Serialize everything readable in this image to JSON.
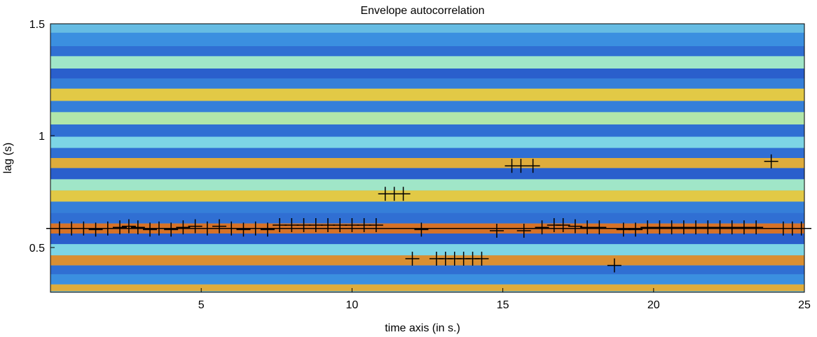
{
  "chart_data": {
    "type": "heatmap",
    "title": "Envelope autocorrelation",
    "xlabel": "time axis (in s.)",
    "ylabel": "lag (s)",
    "xlim": [
      0,
      25
    ],
    "ylim": [
      0.3,
      1.5
    ],
    "x_ticks": [
      5,
      10,
      15,
      20,
      25
    ],
    "y_ticks": [
      0.5,
      1,
      1.5
    ],
    "x_tick_labels": [
      "5",
      "10",
      "15",
      "20",
      "25"
    ],
    "y_tick_labels": [
      "0.5",
      "1",
      "1.5"
    ],
    "colormap": "jet",
    "colors": {
      "low": "#1f3fbf",
      "mid_low": "#3b8fe0",
      "mid": "#8ee6e6",
      "mid_high": "#e6e650",
      "high": "#d2551e"
    },
    "bands": [
      {
        "lag": 1.42,
        "level": 0.25
      },
      {
        "lag": 1.38,
        "level": 0.15
      },
      {
        "lag": 1.33,
        "level": 0.55
      },
      {
        "lag": 1.27,
        "level": 0.1
      },
      {
        "lag": 1.24,
        "level": 0.2
      },
      {
        "lag": 1.18,
        "level": 0.8
      },
      {
        "lag": 1.13,
        "level": 0.2
      },
      {
        "lag": 1.08,
        "level": 0.6
      },
      {
        "lag": 1.02,
        "level": 0.15
      },
      {
        "lag": 0.97,
        "level": 0.45
      },
      {
        "lag": 0.92,
        "level": 0.15
      },
      {
        "lag": 0.88,
        "level": 0.85
      },
      {
        "lag": 0.83,
        "level": 0.1
      },
      {
        "lag": 0.78,
        "level": 0.55
      },
      {
        "lag": 0.73,
        "level": 0.8
      },
      {
        "lag": 0.68,
        "level": 0.2
      },
      {
        "lag": 0.63,
        "level": 0.15
      },
      {
        "lag": 0.585,
        "level": 0.95
      },
      {
        "lag": 0.54,
        "level": 0.1
      },
      {
        "lag": 0.49,
        "level": 0.45
      },
      {
        "lag": 0.44,
        "level": 0.9
      },
      {
        "lag": 0.4,
        "level": 0.15
      },
      {
        "lag": 0.36,
        "level": 0.25
      },
      {
        "lag": 0.31,
        "level": 0.85
      }
    ],
    "reference_line": {
      "lag": 0.585
    },
    "peaks": [
      {
        "x": 0.3,
        "y": 0.585
      },
      {
        "x": 0.7,
        "y": 0.585
      },
      {
        "x": 1.1,
        "y": 0.585
      },
      {
        "x": 1.5,
        "y": 0.58
      },
      {
        "x": 1.9,
        "y": 0.585
      },
      {
        "x": 2.3,
        "y": 0.59
      },
      {
        "x": 2.6,
        "y": 0.595
      },
      {
        "x": 2.9,
        "y": 0.59
      },
      {
        "x": 3.3,
        "y": 0.58
      },
      {
        "x": 3.6,
        "y": 0.585
      },
      {
        "x": 4.0,
        "y": 0.58
      },
      {
        "x": 4.4,
        "y": 0.59
      },
      {
        "x": 4.8,
        "y": 0.595
      },
      {
        "x": 5.2,
        "y": 0.585
      },
      {
        "x": 5.6,
        "y": 0.595
      },
      {
        "x": 6.0,
        "y": 0.585
      },
      {
        "x": 6.4,
        "y": 0.58
      },
      {
        "x": 6.8,
        "y": 0.585
      },
      {
        "x": 7.2,
        "y": 0.58
      },
      {
        "x": 7.6,
        "y": 0.6
      },
      {
        "x": 8.0,
        "y": 0.6
      },
      {
        "x": 8.4,
        "y": 0.6
      },
      {
        "x": 8.8,
        "y": 0.6
      },
      {
        "x": 9.2,
        "y": 0.6
      },
      {
        "x": 9.6,
        "y": 0.6
      },
      {
        "x": 10.0,
        "y": 0.6
      },
      {
        "x": 10.4,
        "y": 0.6
      },
      {
        "x": 10.8,
        "y": 0.6
      },
      {
        "x": 11.1,
        "y": 0.74
      },
      {
        "x": 11.4,
        "y": 0.74
      },
      {
        "x": 11.7,
        "y": 0.74
      },
      {
        "x": 12.0,
        "y": 0.45
      },
      {
        "x": 12.3,
        "y": 0.58
      },
      {
        "x": 12.8,
        "y": 0.45
      },
      {
        "x": 13.1,
        "y": 0.45
      },
      {
        "x": 13.4,
        "y": 0.45
      },
      {
        "x": 13.7,
        "y": 0.45
      },
      {
        "x": 14.0,
        "y": 0.45
      },
      {
        "x": 14.3,
        "y": 0.45
      },
      {
        "x": 14.8,
        "y": 0.575
      },
      {
        "x": 15.3,
        "y": 0.865
      },
      {
        "x": 15.6,
        "y": 0.865
      },
      {
        "x": 15.7,
        "y": 0.575
      },
      {
        "x": 16.0,
        "y": 0.865
      },
      {
        "x": 16.3,
        "y": 0.59
      },
      {
        "x": 16.7,
        "y": 0.6
      },
      {
        "x": 17.0,
        "y": 0.6
      },
      {
        "x": 17.4,
        "y": 0.595
      },
      {
        "x": 17.8,
        "y": 0.59
      },
      {
        "x": 18.2,
        "y": 0.59
      },
      {
        "x": 18.7,
        "y": 0.42
      },
      {
        "x": 19.0,
        "y": 0.58
      },
      {
        "x": 19.4,
        "y": 0.58
      },
      {
        "x": 19.8,
        "y": 0.59
      },
      {
        "x": 20.2,
        "y": 0.59
      },
      {
        "x": 20.6,
        "y": 0.59
      },
      {
        "x": 21.0,
        "y": 0.59
      },
      {
        "x": 21.4,
        "y": 0.59
      },
      {
        "x": 21.8,
        "y": 0.59
      },
      {
        "x": 22.2,
        "y": 0.59
      },
      {
        "x": 22.6,
        "y": 0.59
      },
      {
        "x": 23.0,
        "y": 0.59
      },
      {
        "x": 23.4,
        "y": 0.59
      },
      {
        "x": 23.9,
        "y": 0.885
      },
      {
        "x": 24.3,
        "y": 0.585
      },
      {
        "x": 24.6,
        "y": 0.585
      },
      {
        "x": 24.9,
        "y": 0.585
      }
    ]
  }
}
